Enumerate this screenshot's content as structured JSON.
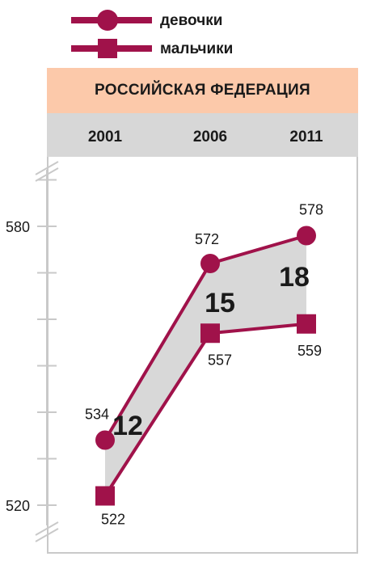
{
  "legend": {
    "girls_label": "девочки",
    "boys_label": "мальчики"
  },
  "title": "РОССИЙСКАЯ ФЕДЕРАЦИЯ",
  "colors": {
    "series": "#a0124a",
    "fill_between": "#d8d8d8",
    "title_band": "#fcc9aa",
    "year_band": "#d7d7d7",
    "axis": "#c9c9c9"
  },
  "chart_data": {
    "type": "line",
    "title": "РОССИЙСКАЯ ФЕДЕРАЦИЯ",
    "x": [
      "2001",
      "2006",
      "2011"
    ],
    "series": [
      {
        "name": "девочки",
        "marker": "circle",
        "values": [
          534,
          572,
          578
        ]
      },
      {
        "name": "мальчики",
        "marker": "square",
        "values": [
          522,
          557,
          559
        ]
      }
    ],
    "gaps": [
      "12",
      "15",
      "18"
    ],
    "point_labels": {
      "girls": [
        "534",
        "572",
        "578"
      ],
      "boys": [
        "522",
        "557",
        "559"
      ]
    },
    "y_ticks": [
      520,
      580
    ],
    "y_tick_labels": [
      "520",
      "580"
    ],
    "ylim": [
      514,
      594
    ],
    "y_minor_step": 10,
    "grid": false,
    "legend_position": "top"
  }
}
